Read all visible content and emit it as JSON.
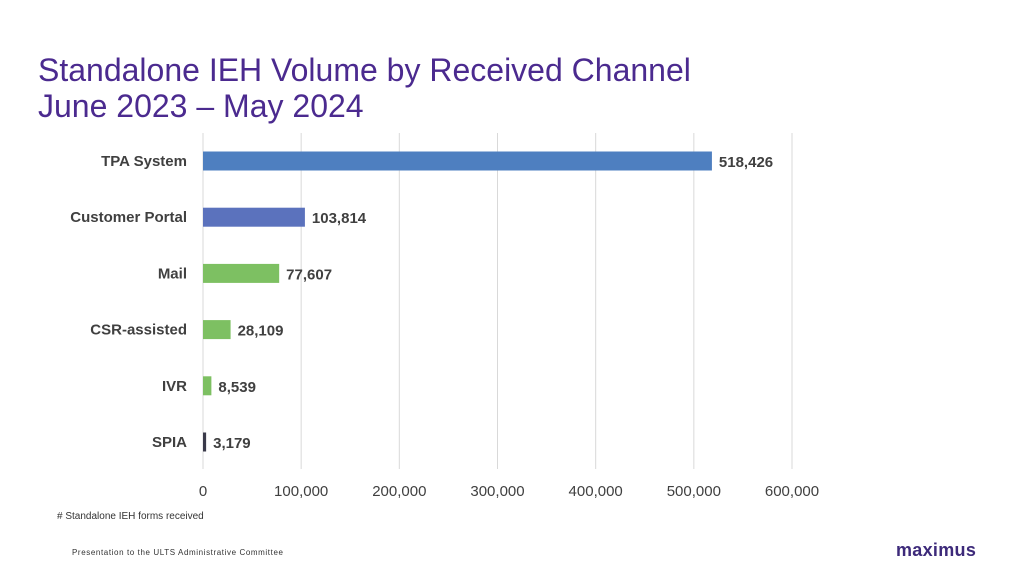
{
  "title": {
    "line1": "Standalone IEH Volume by Received Channel",
    "line2": "June 2023 – May 2024"
  },
  "chart_data": {
    "type": "bar",
    "orientation": "horizontal",
    "categories": [
      "TPA System",
      "Customer Portal",
      "Mail",
      "CSR-assisted",
      "IVR",
      "SPIA"
    ],
    "values": [
      518426,
      103814,
      77607,
      28109,
      8539,
      3179
    ],
    "value_labels": [
      "518,426",
      "103,814",
      "77,607",
      "28,109",
      "8,539",
      "3,179"
    ],
    "bar_colors": [
      "#4E7FC0",
      "#5B72BD",
      "#7DC062",
      "#7DC062",
      "#7DC062",
      "#3A3A4A"
    ],
    "xlim": [
      0,
      600000
    ],
    "xticks": [
      0,
      100000,
      200000,
      300000,
      400000,
      500000,
      600000
    ],
    "xtick_labels": [
      "0",
      "100,000",
      "200,000",
      "300,000",
      "400,000",
      "500,000",
      "600,000"
    ],
    "xlabel": "# Standalone IEH forms received",
    "ylabel": "",
    "grid": true
  },
  "footer": {
    "text": "Presentation to the ULTS Administrative Committee",
    "logo": "maximus"
  }
}
